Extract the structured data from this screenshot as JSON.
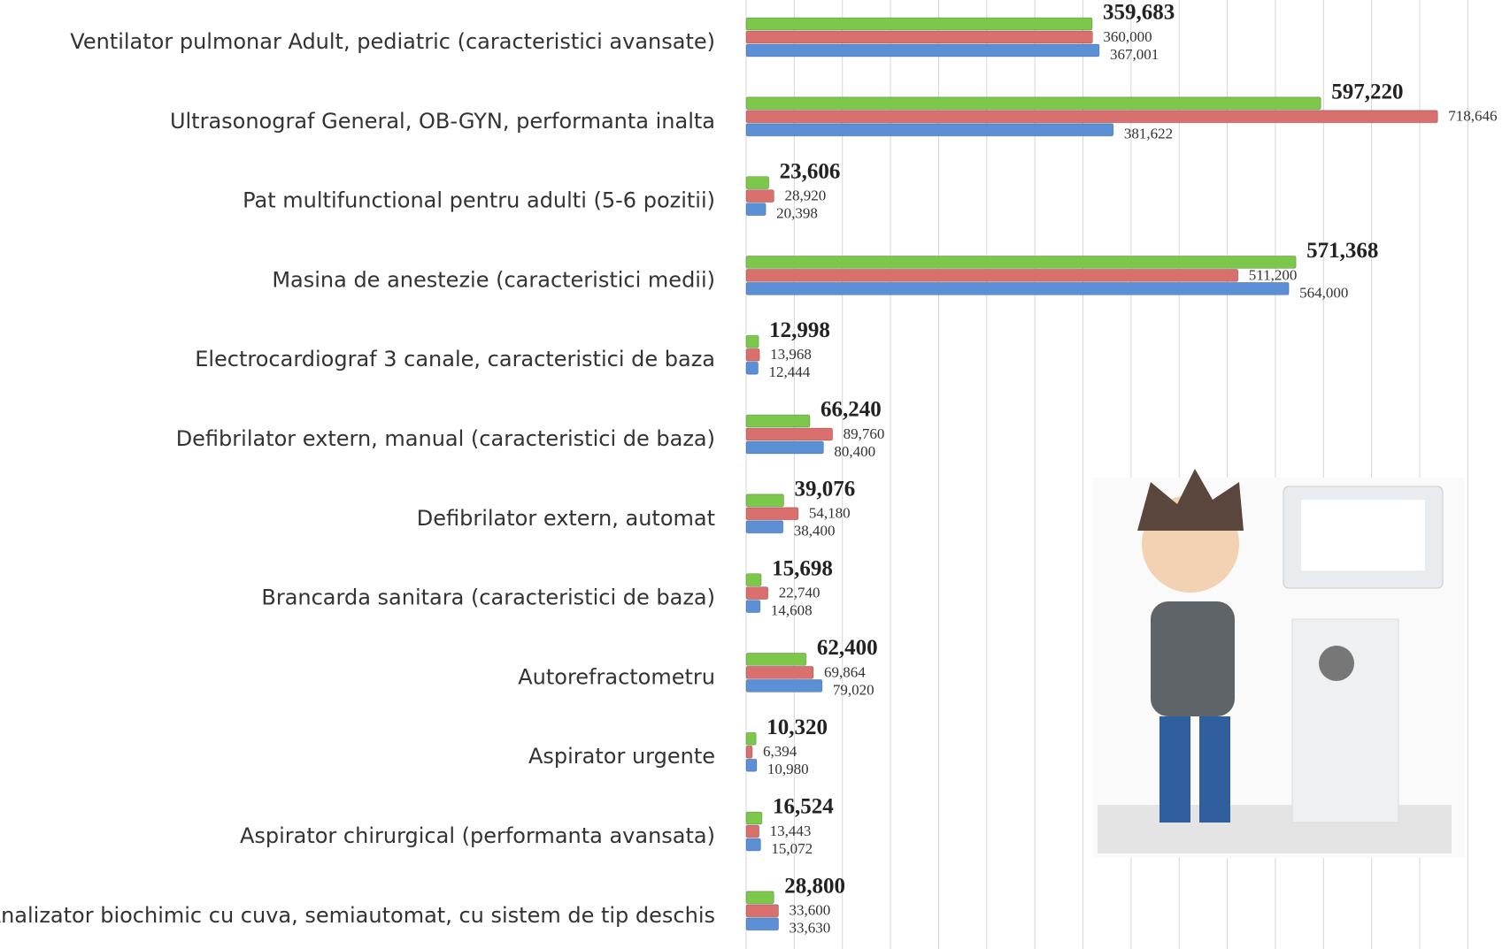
{
  "chart_data": {
    "type": "hbar",
    "categories": [
      "Ventilator pulmonar Adult, pediatric (caracteristici avansate)",
      "Ultrasonograf General, OB-GYN, performanta inalta",
      "Pat multifunctional pentru adulti (5-6 pozitii)",
      "Masina de anestezie (caracteristici medii)",
      "Electrocardiograf 3 canale, caracteristici de baza",
      "Defibrilator extern, manual (caracteristici de baza)",
      "Defibrilator extern, automat",
      "Brancarda sanitara (caracteristici de baza)",
      "Autorefractometru",
      "Aspirator urgente",
      "Aspirator chirurgical (performanta avansata)",
      "Analizator biochimic cu cuva, semiautomat, cu sistem de tip deschis"
    ],
    "series": [
      {
        "color": "#7cc84a",
        "values": [
          359683,
          597220,
          23606,
          571368,
          12998,
          66240,
          39076,
          15698,
          62400,
          10320,
          16524,
          28800
        ],
        "value_labels": [
          "359,683",
          "597,220",
          "23,606",
          "571,368",
          "12,998",
          "66,240",
          "39,076",
          "15,698",
          "62,400",
          "10,320",
          "16,524",
          "28,800"
        ]
      },
      {
        "color": "#d9706e",
        "values": [
          360000,
          718646,
          28920,
          511200,
          13968,
          89760,
          54180,
          22740,
          69864,
          6394,
          13443,
          33600
        ],
        "value_labels": [
          "360,000",
          "718,646",
          "28,920",
          "511,200",
          "13,968",
          "89,760",
          "54,180",
          "22,740",
          "69,864",
          "6,394",
          "13,443",
          "33,600"
        ]
      },
      {
        "color": "#5b8fd6",
        "values": [
          367001,
          381622,
          20398,
          564000,
          12444,
          80400,
          38400,
          14608,
          79020,
          10980,
          15072,
          33630
        ],
        "value_labels": [
          "367,001",
          "381,622",
          "20,398",
          "564,000",
          "12,444",
          "80,400",
          "38,400",
          "14,608",
          "79,020",
          "10,980",
          "15,072",
          "33,630"
        ]
      }
    ],
    "xlim": [
      0,
      780000
    ],
    "grid": true
  }
}
